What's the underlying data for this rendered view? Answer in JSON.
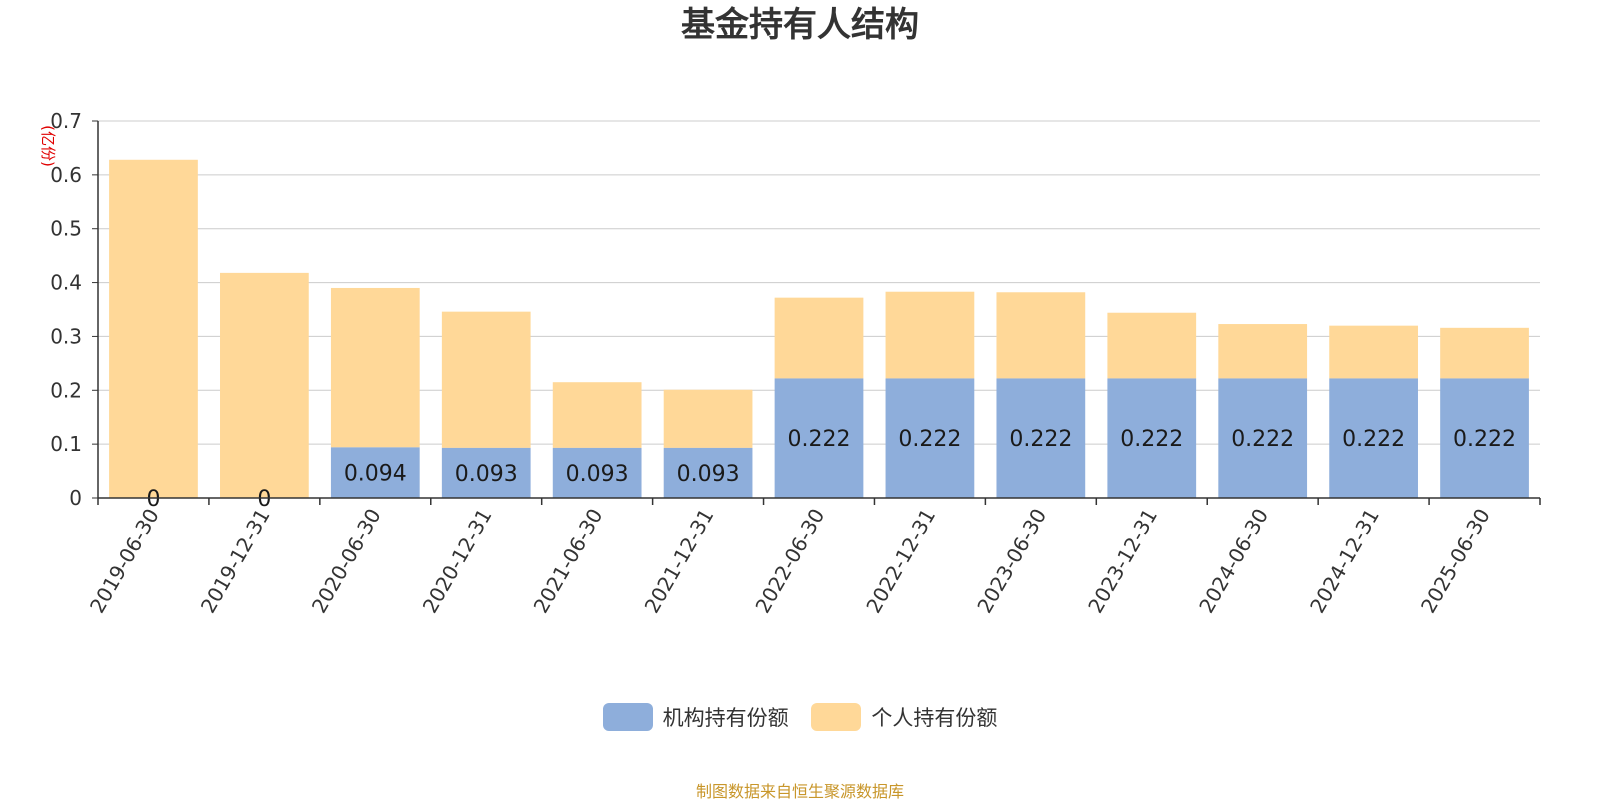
{
  "colors": {
    "institution": "#8eaedb",
    "individual": "#ffd898",
    "grid": "#cccccc",
    "axis": "#333333",
    "unit": "#e00000",
    "source": "#c8962a"
  },
  "chart_data": {
    "type": "bar",
    "stacked": true,
    "title": "基金持有人结构",
    "ylabel": "(亿份)",
    "ylim": [
      0,
      0.7
    ],
    "yticks": [
      "0",
      "0.1",
      "0.2",
      "0.3",
      "0.4",
      "0.5",
      "0.6",
      "0.7"
    ],
    "grid": true,
    "legend_position": "bottom",
    "categories": [
      "2019-06-30",
      "2019-12-31",
      "2020-06-30",
      "2020-12-31",
      "2021-06-30",
      "2021-12-31",
      "2022-06-30",
      "2022-12-31",
      "2023-06-30",
      "2023-12-31",
      "2024-06-30",
      "2024-12-31",
      "2025-06-30"
    ],
    "series": [
      {
        "name": "机构持有份额",
        "values": [
          0,
          0,
          0.094,
          0.093,
          0.093,
          0.093,
          0.222,
          0.222,
          0.222,
          0.222,
          0.222,
          0.222,
          0.222
        ],
        "labels": [
          "0",
          "0",
          "0.094",
          "0.093",
          "0.093",
          "0.093",
          "0.222",
          "0.222",
          "0.222",
          "0.222",
          "0.222",
          "0.222",
          "0.222"
        ]
      },
      {
        "name": "个人持有份额",
        "values": [
          0.628,
          0.418,
          0.296,
          0.253,
          0.122,
          0.108,
          0.15,
          0.161,
          0.16,
          0.122,
          0.101,
          0.098,
          0.094
        ]
      }
    ]
  },
  "source_note": "制图数据来自恒生聚源数据库"
}
